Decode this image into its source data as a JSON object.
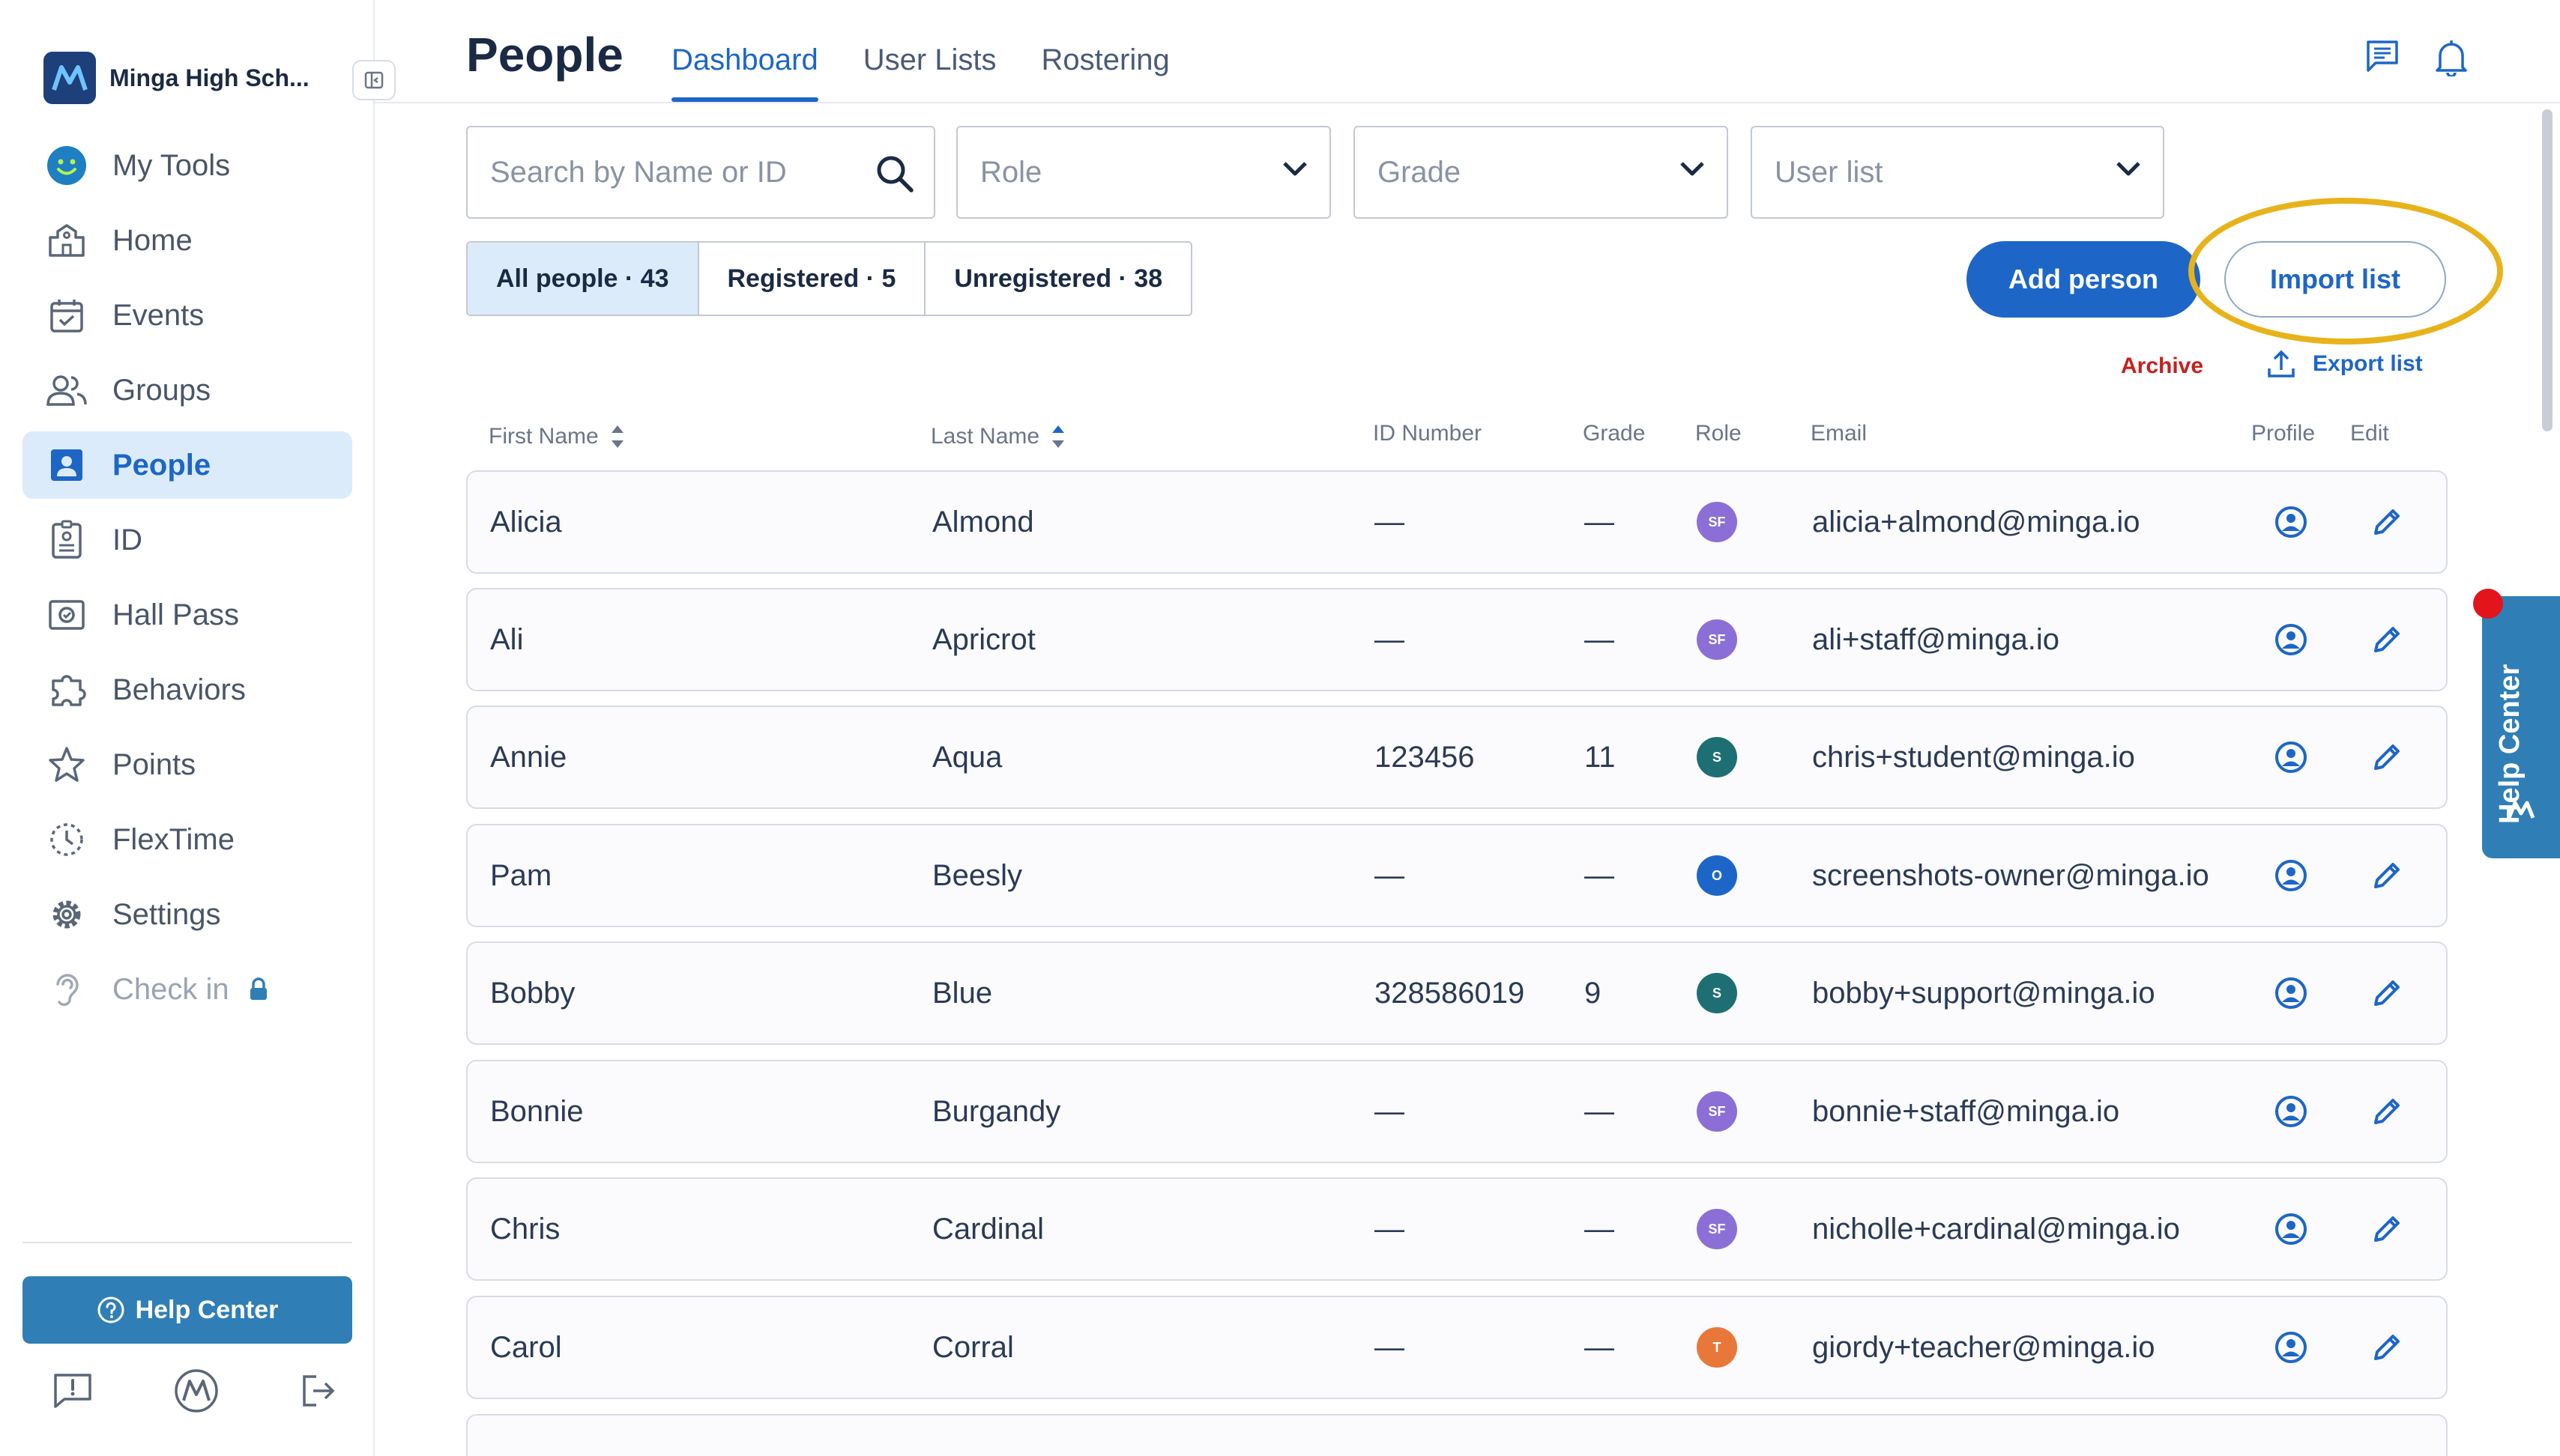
{
  "sidebar": {
    "school_name": "Minga High Sch...",
    "items": [
      {
        "label": "My Tools",
        "icon": "smiley-icon",
        "active": false
      },
      {
        "label": "Home",
        "icon": "school-building-icon",
        "active": false
      },
      {
        "label": "Events",
        "icon": "calendar-check-icon",
        "active": false
      },
      {
        "label": "Groups",
        "icon": "people-group-icon",
        "active": false
      },
      {
        "label": "People",
        "icon": "person-card-icon",
        "active": true
      },
      {
        "label": "ID",
        "icon": "id-badge-icon",
        "active": false
      },
      {
        "label": "Hall Pass",
        "icon": "hall-pass-icon",
        "active": false
      },
      {
        "label": "Behaviors",
        "icon": "puzzle-icon",
        "active": false
      },
      {
        "label": "Points",
        "icon": "star-icon",
        "active": false
      },
      {
        "label": "FlexTime",
        "icon": "flextime-clock-icon",
        "active": false
      },
      {
        "label": "Settings",
        "icon": "gear-icon",
        "active": false
      },
      {
        "label": "Check in",
        "icon": "ear-icon",
        "active": false,
        "locked": true
      }
    ],
    "help_label": "Help Center"
  },
  "header": {
    "title": "People",
    "tabs": [
      {
        "label": "Dashboard",
        "active": true
      },
      {
        "label": "User Lists",
        "active": false
      },
      {
        "label": "Rostering",
        "active": false
      }
    ]
  },
  "filters": {
    "search_placeholder": "Search by Name or ID",
    "role_label": "Role",
    "grade_label": "Grade",
    "userlist_label": "User list"
  },
  "segments": [
    {
      "label": "All people · 43",
      "active": true
    },
    {
      "label": "Registered · 5",
      "active": false
    },
    {
      "label": "Unregistered · 38",
      "active": false
    }
  ],
  "actions": {
    "add_person": "Add person",
    "import_list": "Import list",
    "archive": "Archive",
    "export_list": "Export list"
  },
  "table": {
    "columns": {
      "first_name": "First Name",
      "last_name": "Last Name",
      "id_number": "ID Number",
      "grade": "Grade",
      "role": "Role",
      "email": "Email",
      "profile": "Profile",
      "edit": "Edit"
    },
    "rows": [
      {
        "first": "Alicia",
        "last": "Almond",
        "id": "—",
        "grade": "—",
        "role": "SF",
        "role_color": "#8b6fd6",
        "email": "alicia+almond@minga.io"
      },
      {
        "first": "Ali",
        "last": "Apricrot",
        "id": "—",
        "grade": "—",
        "role": "SF",
        "role_color": "#8b6fd6",
        "email": "ali+staff@minga.io"
      },
      {
        "first": "Annie",
        "last": "Aqua",
        "id": "123456",
        "grade": "11",
        "role": "S",
        "role_color": "#1e6f73",
        "email": "chris+student@minga.io"
      },
      {
        "first": "Pam",
        "last": "Beesly",
        "id": "—",
        "grade": "—",
        "role": "O",
        "role_color": "#1d66c7",
        "email": "screenshots-owner@minga.io"
      },
      {
        "first": "Bobby",
        "last": "Blue",
        "id": "328586019",
        "grade": "9",
        "role": "S",
        "role_color": "#1e6f73",
        "email": "bobby+support@minga.io"
      },
      {
        "first": "Bonnie",
        "last": "Burgandy",
        "id": "—",
        "grade": "—",
        "role": "SF",
        "role_color": "#8b6fd6",
        "email": "bonnie+staff@minga.io"
      },
      {
        "first": "Chris",
        "last": "Cardinal",
        "id": "—",
        "grade": "—",
        "role": "SF",
        "role_color": "#8b6fd6",
        "email": "nicholle+cardinal@minga.io"
      },
      {
        "first": "Carol",
        "last": "Corral",
        "id": "—",
        "grade": "—",
        "role": "T",
        "role_color": "#e8783a",
        "email": "giordy+teacher@minga.io"
      }
    ]
  },
  "help_tab_label": "Help Center",
  "colors": {
    "primary": "#1d66c7",
    "active_bg": "#dcebfa",
    "highlight": "#e8b21a",
    "archive": "#c6201f",
    "help": "#2f7fb6"
  }
}
